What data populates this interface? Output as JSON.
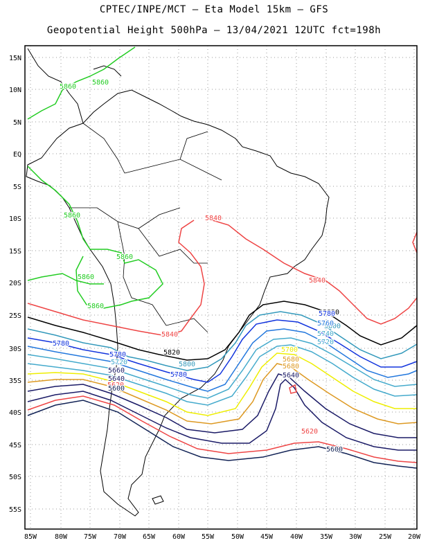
{
  "title_line1": "CPTEC/INPE/MCT –  Eta Model 15km – GFS",
  "title_line2": "Geopotential Height 500hPa – 13/04/2021 12UTC fct=198h",
  "lat_labels": [
    "15N",
    "10N",
    "5N",
    "EQ",
    "5S",
    "10S",
    "15S",
    "20S",
    "25S",
    "30S",
    "35S",
    "40S",
    "45S",
    "50S",
    "55S"
  ],
  "lon_labels": [
    "85W",
    "80W",
    "75W",
    "70W",
    "65W",
    "60W",
    "55W",
    "50W",
    "45W",
    "40W",
    "35W",
    "30W",
    "25W",
    "20W"
  ],
  "colors": {
    "c5860": "#22cc22",
    "c5840": "#ee4444",
    "c5820": "#000000",
    "c5800": "#3399bb",
    "c5780": "#1133dd",
    "c5760": "#2277dd",
    "c5740": "#44aacc",
    "c5720": "#44aacc",
    "c5700": "#eeee00",
    "c5680": "#dd9922",
    "c5660": "#1a1a66",
    "c5640": "#1a1a66",
    "c5620": "#ee4444",
    "c5600": "#112255",
    "coast": "#000000",
    "grid": "#999999"
  },
  "contour_labels": [
    {
      "t": "5860",
      "c": "c5860"
    },
    {
      "t": "5860",
      "c": "c5860"
    },
    {
      "t": "5860",
      "c": "c5860"
    },
    {
      "t": "5860",
      "c": "c5860"
    },
    {
      "t": "5860",
      "c": "c5860"
    },
    {
      "t": "5860",
      "c": "c5860"
    },
    {
      "t": "5840",
      "c": "c5840"
    },
    {
      "t": "5840",
      "c": "c5840"
    },
    {
      "t": "5840",
      "c": "c5840"
    },
    {
      "t": "5820",
      "c": "c5820"
    },
    {
      "t": "5820",
      "c": "c5820"
    },
    {
      "t": "5800",
      "c": "c5800"
    },
    {
      "t": "5800",
      "c": "c5800"
    },
    {
      "t": "5780",
      "c": "c5780"
    },
    {
      "t": "5780",
      "c": "c5780"
    },
    {
      "t": "5780",
      "c": "c5780"
    },
    {
      "t": "5780",
      "c": "c5780"
    },
    {
      "t": "5760",
      "c": "c5760"
    },
    {
      "t": "5740",
      "c": "c5740"
    },
    {
      "t": "5720",
      "c": "c5720"
    },
    {
      "t": "5720",
      "c": "c5720"
    },
    {
      "t": "5700",
      "c": "c5700"
    },
    {
      "t": "5680",
      "c": "c5680"
    },
    {
      "t": "5680",
      "c": "c5680"
    },
    {
      "t": "5660",
      "c": "c5660"
    },
    {
      "t": "5640",
      "c": "c5640"
    },
    {
      "t": "5640",
      "c": "c5640"
    },
    {
      "t": "5620",
      "c": "c5620"
    },
    {
      "t": "5620",
      "c": "c5620"
    },
    {
      "t": "5600",
      "c": "c5600"
    },
    {
      "t": "5600",
      "c": "c5600"
    }
  ]
}
